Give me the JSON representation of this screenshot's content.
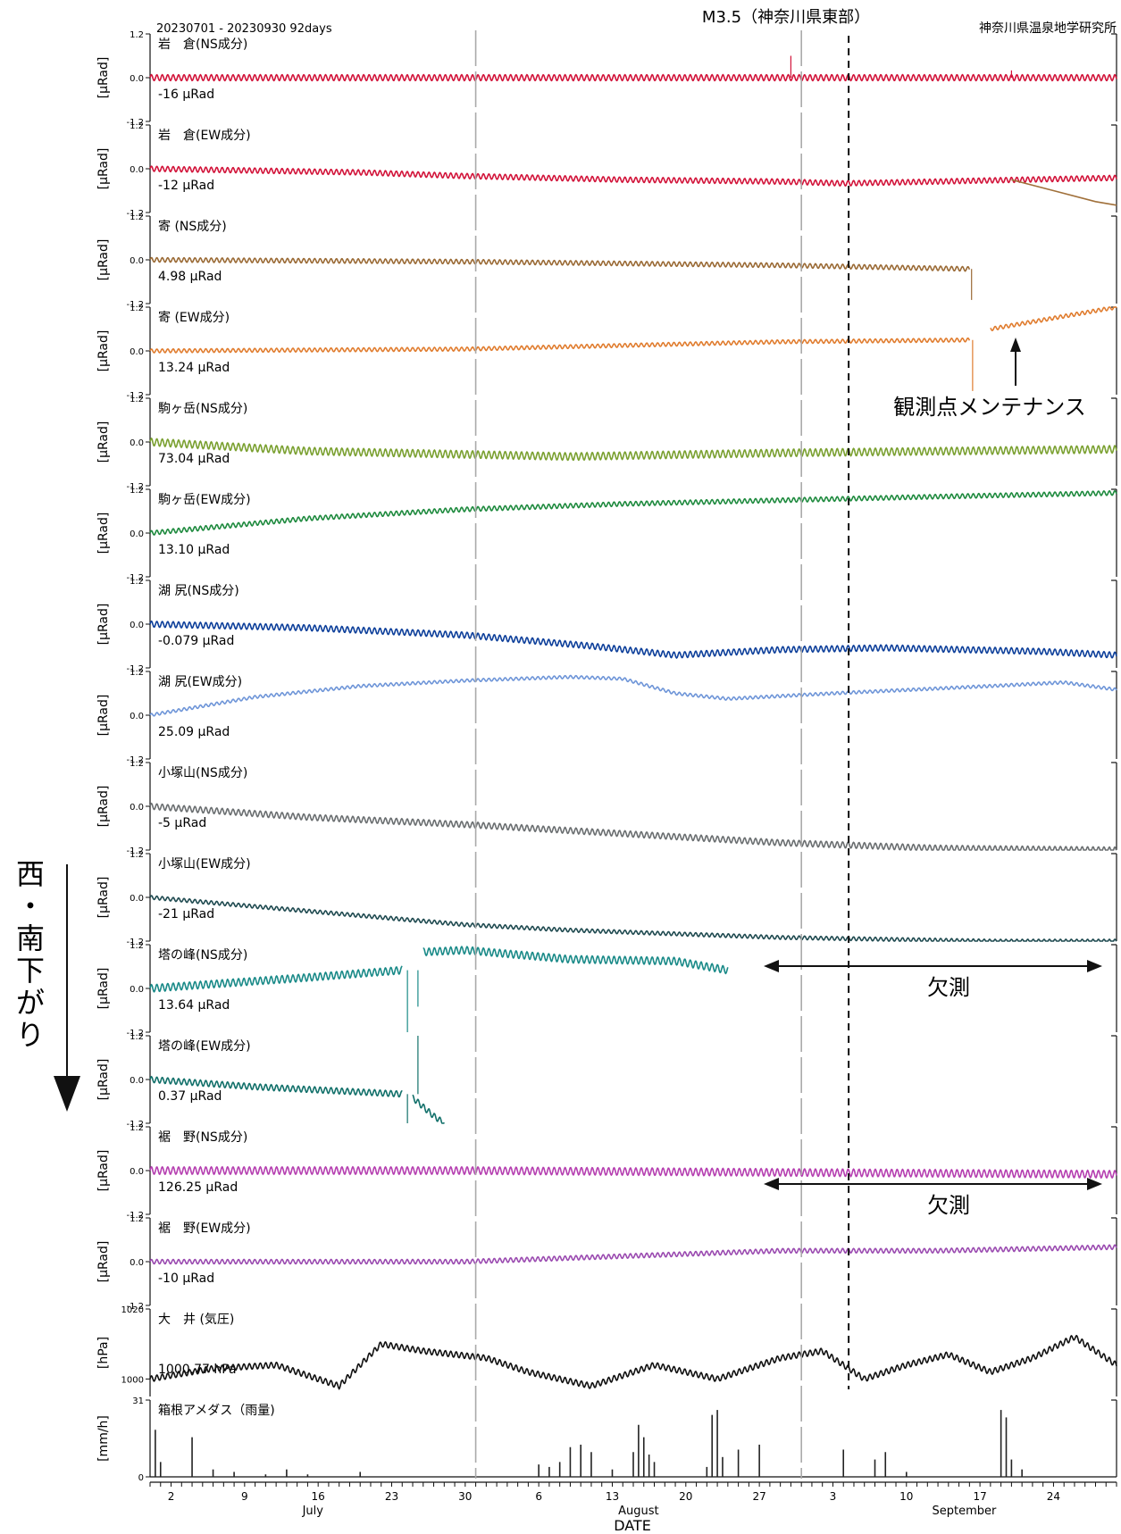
{
  "chart_data": {
    "type": "line",
    "header": {
      "period": "20230701 - 20230930 92days",
      "event": "M3.5（神奈川県東部）",
      "institute": "神奈川県温泉地学研究所"
    },
    "side_annotation": "西・南下がり",
    "xlabel": "DATE",
    "x_days": 92,
    "ticks": {
      "days": [
        {
          "d": 2,
          "label": "2"
        },
        {
          "d": 9,
          "label": "9"
        },
        {
          "d": 16,
          "label": "16"
        },
        {
          "d": 23,
          "label": "23"
        },
        {
          "d": 30,
          "label": "30"
        },
        {
          "d": 37,
          "label": "6"
        },
        {
          "d": 44,
          "label": "13"
        },
        {
          "d": 51,
          "label": "20"
        },
        {
          "d": 58,
          "label": "27"
        },
        {
          "d": 65,
          "label": "3"
        },
        {
          "d": 72,
          "label": "10"
        },
        {
          "d": 79,
          "label": "17"
        },
        {
          "d": 86,
          "label": "24"
        }
      ],
      "months": [
        {
          "d": 15.5,
          "label": "July"
        },
        {
          "d": 46.5,
          "label": "August"
        },
        {
          "d": 77.5,
          "label": "September"
        }
      ],
      "month_boundaries": [
        31,
        62
      ]
    },
    "event_day": 66.5,
    "panels": [
      {
        "title": "岩　倉(NS成分)",
        "unit": "[μRad]",
        "range_label": "-16 μRad",
        "ylim": [
          -1.2,
          1.2
        ],
        "tick_labels": [
          "1.2",
          "0.0",
          "-1.2"
        ],
        "color": "#d2143a",
        "series": [
          {
            "x": [
              0,
              30,
              60,
              92
            ],
            "y": [
              0.0,
              0.0,
              0.0,
              0.0
            ]
          }
        ],
        "amp": 0.08,
        "spikes": [
          {
            "x": 61,
            "y": 0.6
          },
          {
            "x": 82,
            "y": 0.2
          }
        ]
      },
      {
        "title": "岩　倉(EW成分)",
        "unit": "[μRad]",
        "range_label": "-12 μRad",
        "ylim": [
          -1.2,
          1.2
        ],
        "tick_labels": [
          "1.2",
          "0.0",
          "-1.2"
        ],
        "color": "#d2143a",
        "series": [
          {
            "x": [
              0,
              10,
              20,
              30,
              45,
              60,
              66,
              75,
              83,
              92
            ],
            "y": [
              0.0,
              -0.05,
              -0.1,
              -0.2,
              -0.3,
              -0.35,
              -0.4,
              -0.35,
              -0.3,
              -0.25
            ]
          }
        ],
        "amp": 0.07,
        "extra": {
          "color": "#a0703a",
          "x": [
            82,
            86,
            90,
            92
          ],
          "y": [
            -0.3,
            -0.6,
            -0.9,
            -1.0
          ]
        }
      },
      {
        "title": "寄 (NS成分)",
        "unit": "[μRad]",
        "range_label": "4.98 μRad",
        "ylim": [
          -1.2,
          1.2
        ],
        "tick_labels": [
          "1.2",
          "0.0",
          "-1.2"
        ],
        "color": "#9a6a35",
        "series": [
          {
            "x": [
              0,
              30,
              60,
              78
            ],
            "y": [
              0.0,
              -0.05,
              -0.15,
              -0.25
            ]
          }
        ],
        "amp": 0.06,
        "spikes": [
          {
            "x": 78.2,
            "y": -1.1
          }
        ]
      },
      {
        "title": "寄 (EW成分)",
        "unit": "[μRad]",
        "range_label": "13.24 μRad",
        "ylim": [
          -1.2,
          1.2
        ],
        "tick_labels": [
          "1.2",
          "0.0",
          "-1.2"
        ],
        "color": "#e07c2e",
        "series": [
          {
            "x": [
              0,
              30,
              60,
              78
            ],
            "y": [
              0.0,
              0.05,
              0.25,
              0.3
            ]
          },
          {
            "x": [
              80,
              84,
              88,
              92
            ],
            "y": [
              0.6,
              0.8,
              1.0,
              1.2
            ]
          }
        ],
        "amp": 0.05,
        "spikes": [
          {
            "x": 78.3,
            "y": -1.1
          }
        ]
      },
      {
        "title": "駒ヶ岳(NS成分)",
        "unit": "[μRad]",
        "range_label": "73.04 μRad",
        "ylim": [
          -1.2,
          1.2
        ],
        "tick_labels": [
          "1.2",
          "0.0",
          "-1.2"
        ],
        "color": "#7aa030",
        "series": [
          {
            "x": [
              0,
              15,
              40,
              60,
              92
            ],
            "y": [
              0.0,
              -0.25,
              -0.4,
              -0.3,
              -0.2
            ]
          }
        ],
        "amp": 0.1
      },
      {
        "title": "駒ヶ岳(EW成分)",
        "unit": "[μRad]",
        "range_label": "13.10 μRad",
        "ylim": [
          -1.2,
          1.2
        ],
        "tick_labels": [
          "1.2",
          "0.0",
          "-1.2"
        ],
        "color": "#1e8a3e",
        "series": [
          {
            "x": [
              0,
              15,
              30,
              45,
              60,
              75,
              92
            ],
            "y": [
              0.0,
              0.4,
              0.65,
              0.8,
              0.9,
              1.0,
              1.1
            ]
          }
        ],
        "amp": 0.06
      },
      {
        "title": "湖 尻(NS成分)",
        "unit": "[μRad]",
        "range_label": "-0.079 μRad",
        "ylim": [
          -1.2,
          1.2
        ],
        "tick_labels": [
          "1.2",
          "0.0",
          "-1.2"
        ],
        "color": "#0d3f9a",
        "series": [
          {
            "x": [
              0,
              15,
              30,
              42,
              50,
              60,
              70,
              85,
              92
            ],
            "y": [
              0.0,
              -0.1,
              -0.3,
              -0.6,
              -0.85,
              -0.7,
              -0.65,
              -0.75,
              -0.85
            ]
          }
        ],
        "amp": 0.08
      },
      {
        "title": "湖 尻(EW成分)",
        "unit": "[μRad]",
        "range_label": "25.09 μRad",
        "ylim": [
          -1.2,
          1.2
        ],
        "tick_labels": [
          "1.2",
          "0.0",
          "-1.2"
        ],
        "color": "#6e95d8",
        "series": [
          {
            "x": [
              0,
              10,
              20,
              30,
              40,
              45,
              50,
              55,
              65,
              80,
              87,
              92
            ],
            "y": [
              0.0,
              0.5,
              0.8,
              0.95,
              1.05,
              1.0,
              0.6,
              0.45,
              0.6,
              0.8,
              0.9,
              0.7
            ]
          }
        ],
        "amp": 0.04
      },
      {
        "title": "小塚山(NS成分)",
        "unit": "[μRad]",
        "range_label": "-5 μRad",
        "ylim": [
          -1.2,
          1.2
        ],
        "tick_labels": [
          "1.2",
          "0.0",
          "-1.2"
        ],
        "color": "#6a6e70",
        "series": [
          {
            "x": [
              0,
              15,
              30,
              45,
              60,
              75,
              92
            ],
            "y": [
              0.0,
              -0.3,
              -0.5,
              -0.75,
              -1.0,
              -1.15,
              -1.2
            ]
          }
        ],
        "amp": 0.08
      },
      {
        "title": "小塚山(EW成分)",
        "unit": "[μRad]",
        "range_label": "-21 μRad",
        "ylim": [
          -1.2,
          1.2
        ],
        "tick_labels": [
          "1.2",
          "0.0",
          "-1.2"
        ],
        "color": "#1f4a50",
        "series": [
          {
            "x": [
              0,
              10,
              20,
              30,
              40,
              50,
              60,
              70,
              80,
              92
            ],
            "y": [
              0.0,
              -0.25,
              -0.5,
              -0.75,
              -0.9,
              -1.0,
              -1.1,
              -1.15,
              -1.2,
              -1.2
            ]
          }
        ],
        "amp": 0.05
      },
      {
        "title": "塔の峰(NS成分)",
        "unit": "[μRad]",
        "range_label": "13.64 μRad",
        "ylim": [
          -1.2,
          1.2
        ],
        "tick_labels": [
          "1.2",
          "0.0",
          "-1.2"
        ],
        "color": "#1a8a88",
        "series": [
          {
            "x": [
              0,
              15,
              24
            ],
            "y": [
              0.0,
              0.3,
              0.5
            ]
          },
          {
            "x": [
              26,
              30,
              40,
              50,
              55
            ],
            "y": [
              1.0,
              1.05,
              0.8,
              0.75,
              0.5
            ]
          }
        ],
        "amp": 0.1,
        "spikes": [
          {
            "x": 24.5,
            "y": -1.2
          },
          {
            "x": 25.5,
            "y": -0.5
          }
        ]
      },
      {
        "title": "塔の峰(EW成分)",
        "unit": "[μRad]",
        "range_label": "0.37 μRad",
        "ylim": [
          -1.2,
          1.2
        ],
        "tick_labels": [
          "1.2",
          "0.0",
          "-1.2"
        ],
        "color": "#12706a",
        "series": [
          {
            "x": [
              0,
              10,
              24
            ],
            "y": [
              0.0,
              -0.2,
              -0.4
            ]
          },
          {
            "x": [
              25,
              27,
              28
            ],
            "y": [
              -0.5,
              -1.0,
              -1.2
            ]
          }
        ],
        "amp": 0.08,
        "spikes": [
          {
            "x": 24.5,
            "y": -1.2
          },
          {
            "x": 25.5,
            "y": 1.2
          }
        ]
      },
      {
        "title": "裾　野(NS成分)",
        "unit": "[μRad]",
        "range_label": "126.25 μRad",
        "ylim": [
          -1.2,
          1.2
        ],
        "tick_labels": [
          "1.2",
          "0.0",
          "-1.2"
        ],
        "color": "#b53fb0",
        "series": [
          {
            "x": [
              0,
              30,
              60,
              92
            ],
            "y": [
              0.0,
              0.0,
              -0.05,
              -0.1
            ]
          }
        ],
        "amp": 0.1
      },
      {
        "title": "裾　野(EW成分)",
        "unit": "[μRad]",
        "range_label": "-10 μRad",
        "ylim": [
          -1.2,
          1.2
        ],
        "tick_labels": [
          "1.2",
          "0.0",
          "-1.2"
        ],
        "color": "#9a4ab0",
        "series": [
          {
            "x": [
              0,
              30,
              45,
              60,
              75,
              92
            ],
            "y": [
              0.0,
              0.0,
              0.15,
              0.3,
              0.3,
              0.4
            ]
          }
        ],
        "amp": 0.06
      },
      {
        "title": "大　井 (気圧)",
        "unit": "[hPa]",
        "range_label": "1000.77 hPa",
        "ylim": [
          995,
          1020
        ],
        "tick_labels": [
          "1020",
          "1000"
        ],
        "color": "#111111",
        "series": [
          {
            "x": [
              0,
              6,
              12,
              18,
              22,
              26,
              32,
              36,
              42,
              48,
              54,
              60,
              64,
              68,
              72,
              76,
              80,
              84,
              88,
              92
            ],
            "y": [
              1000,
              1003,
              1004,
              998,
              1010,
              1008,
              1006,
              1002,
              998,
              1004,
              1000,
              1006,
              1008,
              1000,
              1004,
              1007,
              1002,
              1006,
              1012,
              1004
            ]
          }
        ],
        "amp": 0.8
      },
      {
        "title": "箱根アメダス（雨量)",
        "unit": "[mm/h]",
        "ylim": [
          0,
          31
        ],
        "tick_labels": [
          "31",
          "0"
        ],
        "color": "#222222",
        "kind": "bar",
        "bars": [
          {
            "x": 0.5,
            "y": 19
          },
          {
            "x": 1,
            "y": 6
          },
          {
            "x": 4,
            "y": 16
          },
          {
            "x": 6,
            "y": 3
          },
          {
            "x": 8,
            "y": 2
          },
          {
            "x": 11,
            "y": 1
          },
          {
            "x": 13,
            "y": 3
          },
          {
            "x": 15,
            "y": 1
          },
          {
            "x": 20,
            "y": 2
          },
          {
            "x": 37,
            "y": 5
          },
          {
            "x": 38,
            "y": 4
          },
          {
            "x": 39,
            "y": 6
          },
          {
            "x": 40,
            "y": 12
          },
          {
            "x": 41,
            "y": 13
          },
          {
            "x": 42,
            "y": 10
          },
          {
            "x": 44,
            "y": 3
          },
          {
            "x": 46,
            "y": 10
          },
          {
            "x": 46.5,
            "y": 21
          },
          {
            "x": 47,
            "y": 16
          },
          {
            "x": 47.5,
            "y": 9
          },
          {
            "x": 48,
            "y": 6
          },
          {
            "x": 53,
            "y": 4
          },
          {
            "x": 53.5,
            "y": 25
          },
          {
            "x": 54,
            "y": 27
          },
          {
            "x": 54.5,
            "y": 8
          },
          {
            "x": 56,
            "y": 11
          },
          {
            "x": 58,
            "y": 13
          },
          {
            "x": 66,
            "y": 11
          },
          {
            "x": 69,
            "y": 7
          },
          {
            "x": 70,
            "y": 10
          },
          {
            "x": 72,
            "y": 2
          },
          {
            "x": 81,
            "y": 27
          },
          {
            "x": 81.5,
            "y": 24
          },
          {
            "x": 82,
            "y": 7
          },
          {
            "x": 83,
            "y": 3
          }
        ]
      }
    ],
    "annotations": {
      "maintenance": "観測点メンテナンス",
      "missing_1": "欠測",
      "missing_2": "欠測"
    }
  }
}
